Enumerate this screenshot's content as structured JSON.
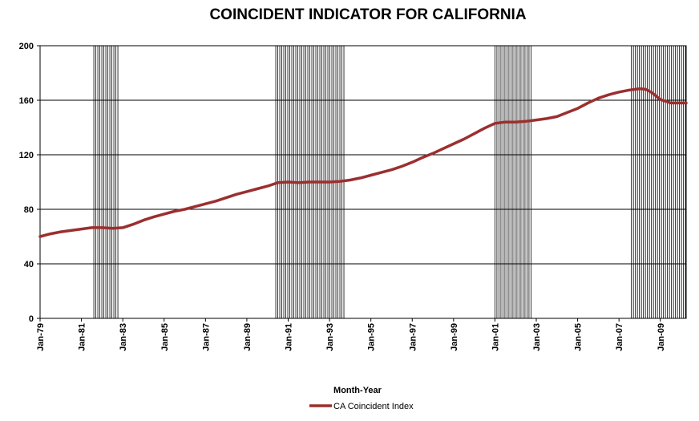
{
  "chart_data": {
    "type": "line",
    "title": "COINCIDENT INDICATOR FOR CALIFORNIA",
    "xlabel": "Month-Year",
    "ylabel": "",
    "ylim": [
      0,
      200
    ],
    "yticks": [
      0,
      40,
      80,
      120,
      160,
      200
    ],
    "xlim": [
      1979.0,
      2010.25
    ],
    "xticks": [
      {
        "x": 1979,
        "label": "Jan-79"
      },
      {
        "x": 1981,
        "label": "Jan-81"
      },
      {
        "x": 1983,
        "label": "Jan-83"
      },
      {
        "x": 1985,
        "label": "Jan-85"
      },
      {
        "x": 1987,
        "label": "Jan-87"
      },
      {
        "x": 1989,
        "label": "Jan-89"
      },
      {
        "x": 1991,
        "label": "Jan-91"
      },
      {
        "x": 1993,
        "label": "Jan-93"
      },
      {
        "x": 1995,
        "label": "Jan-95"
      },
      {
        "x": 1997,
        "label": "Jan-97"
      },
      {
        "x": 1999,
        "label": "Jan-99"
      },
      {
        "x": 2001,
        "label": "Jan-01"
      },
      {
        "x": 2003,
        "label": "Jan-03"
      },
      {
        "x": 2005,
        "label": "Jan-05"
      },
      {
        "x": 2007,
        "label": "Jan-07"
      },
      {
        "x": 2009,
        "label": "Jan-09"
      }
    ],
    "grid": "horizontal",
    "legend": "bottom",
    "recession_bands": [
      [
        1981.6,
        1982.8
      ],
      [
        1990.4,
        1993.7
      ],
      [
        2001.0,
        2002.8
      ],
      [
        2007.6,
        2010.25
      ]
    ],
    "series": [
      {
        "name": "CA Coincident Index",
        "color": "#9b2f2f",
        "points": [
          [
            1979.0,
            60
          ],
          [
            1979.5,
            62
          ],
          [
            1980.0,
            63.5
          ],
          [
            1980.5,
            64.5
          ],
          [
            1981.0,
            65.5
          ],
          [
            1981.5,
            66.5
          ],
          [
            1982.0,
            66.5
          ],
          [
            1982.5,
            66
          ],
          [
            1983.0,
            66.5
          ],
          [
            1983.5,
            69
          ],
          [
            1984.0,
            72
          ],
          [
            1984.5,
            74.5
          ],
          [
            1985.0,
            76.5
          ],
          [
            1985.5,
            78.5
          ],
          [
            1986.0,
            80
          ],
          [
            1986.5,
            82
          ],
          [
            1987.0,
            84
          ],
          [
            1987.5,
            86
          ],
          [
            1988.0,
            88.5
          ],
          [
            1988.5,
            91
          ],
          [
            1989.0,
            93
          ],
          [
            1989.5,
            95
          ],
          [
            1990.0,
            97
          ],
          [
            1990.5,
            99.5
          ],
          [
            1991.0,
            100
          ],
          [
            1991.5,
            99.5
          ],
          [
            1992.0,
            100
          ],
          [
            1992.5,
            100
          ],
          [
            1993.0,
            100
          ],
          [
            1993.5,
            100.5
          ],
          [
            1994.0,
            101.5
          ],
          [
            1994.5,
            103
          ],
          [
            1995.0,
            105
          ],
          [
            1995.5,
            107
          ],
          [
            1996.0,
            109
          ],
          [
            1996.5,
            111.5
          ],
          [
            1997.0,
            114.5
          ],
          [
            1997.5,
            118
          ],
          [
            1998.0,
            121
          ],
          [
            1998.5,
            124.5
          ],
          [
            1999.0,
            128
          ],
          [
            1999.5,
            131.5
          ],
          [
            2000.0,
            135.5
          ],
          [
            2000.5,
            139.5
          ],
          [
            2001.0,
            143
          ],
          [
            2001.5,
            144
          ],
          [
            2002.0,
            144
          ],
          [
            2002.5,
            144.5
          ],
          [
            2003.0,
            145.5
          ],
          [
            2003.5,
            146.5
          ],
          [
            2004.0,
            148
          ],
          [
            2004.5,
            151
          ],
          [
            2005.0,
            154
          ],
          [
            2005.5,
            158
          ],
          [
            2006.0,
            161.5
          ],
          [
            2006.5,
            164
          ],
          [
            2007.0,
            166
          ],
          [
            2007.5,
            167.5
          ],
          [
            2008.0,
            168.5
          ],
          [
            2008.3,
            168
          ],
          [
            2008.6,
            165.5
          ],
          [
            2009.0,
            160.5
          ],
          [
            2009.5,
            158
          ],
          [
            2010.25,
            158
          ]
        ]
      }
    ]
  }
}
